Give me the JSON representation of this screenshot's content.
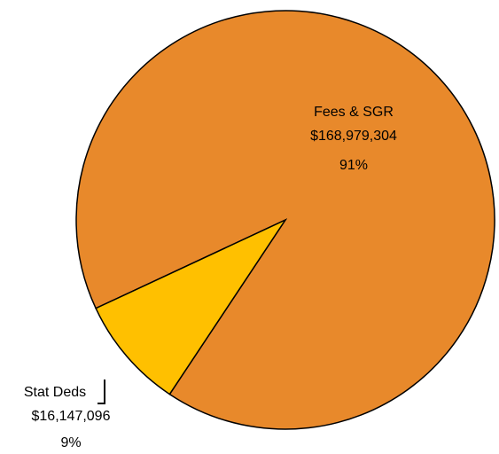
{
  "chart_data": {
    "type": "pie",
    "categories": [
      "Fees & SGR",
      "Stat Deds"
    ],
    "values": [
      168979304,
      16147096
    ],
    "value_labels": [
      "$168,979,304",
      "$16,147,096"
    ],
    "percent_labels": [
      "91%",
      "9%"
    ],
    "colors": [
      "#E8892B",
      "#FFC000"
    ]
  }
}
